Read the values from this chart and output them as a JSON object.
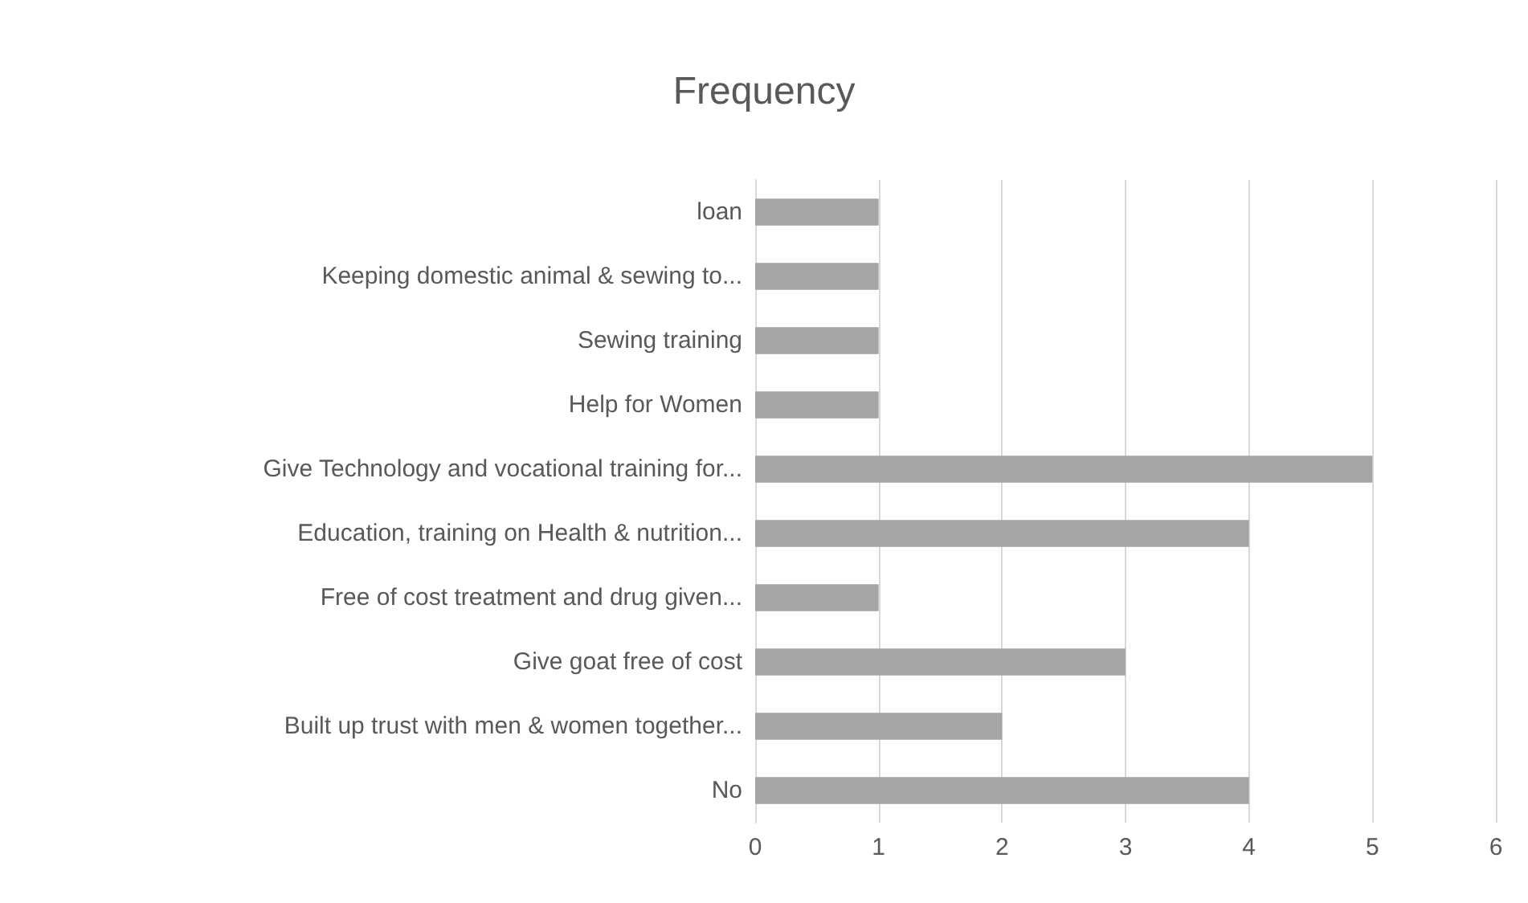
{
  "chart_data": {
    "type": "bar",
    "orientation": "horizontal",
    "title": "Frequency",
    "categories": [
      "loan",
      "Keeping domestic animal & sewing to...",
      "Sewing training",
      "Help for Women",
      "Give Technology and vocational training for...",
      "Education, training on Health & nutrition...",
      "Free of cost treatment and drug given...",
      "Give goat free of cost",
      "Built up trust with men & women together...",
      "No"
    ],
    "values": [
      1,
      1,
      1,
      1,
      5,
      4,
      1,
      3,
      2,
      4
    ],
    "color": "#a5a5a5",
    "xlim": [
      0,
      6
    ],
    "xticks": [
      0,
      1,
      2,
      3,
      4,
      5,
      6
    ],
    "grid": "x"
  }
}
